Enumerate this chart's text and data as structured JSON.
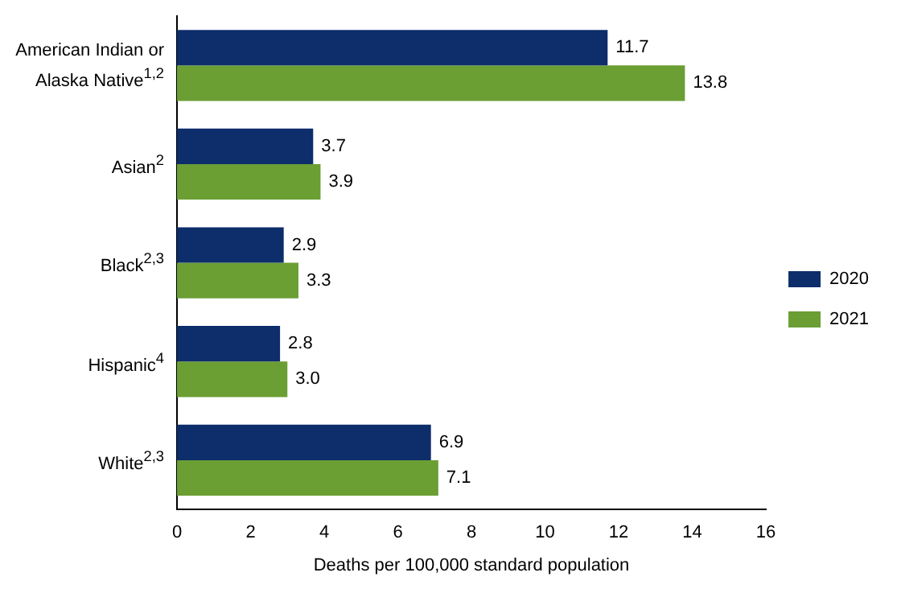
{
  "chart_data": {
    "type": "bar",
    "orientation": "horizontal",
    "xlabel": "Deaths per 100,000 standard population",
    "categories": [
      "American Indian or Alaska Native$^{1,2}$",
      "Asian$^{2}$",
      "Black$^{2,3}$",
      "Hispanic$^{4}$",
      "White$^{2,3}$"
    ],
    "series": [
      {
        "name": "2020",
        "color": "#0d2d6b",
        "values": [
          11.7,
          3.7,
          2.9,
          2.8,
          6.9
        ],
        "value_labels": [
          "11.7",
          "3.7",
          "2.9",
          "2.8",
          "6.9"
        ]
      },
      {
        "name": "2021",
        "color": "#6b9e33",
        "values": [
          13.8,
          3.9,
          3.3,
          3.0,
          7.1
        ],
        "value_labels": [
          "13.8",
          "3.9",
          "3.3",
          "3.0",
          "7.1"
        ]
      }
    ],
    "xlim": [
      0,
      16
    ],
    "xticks": [
      0,
      2,
      4,
      6,
      8,
      10,
      12,
      14,
      16
    ],
    "grid": false,
    "legend": "right"
  }
}
